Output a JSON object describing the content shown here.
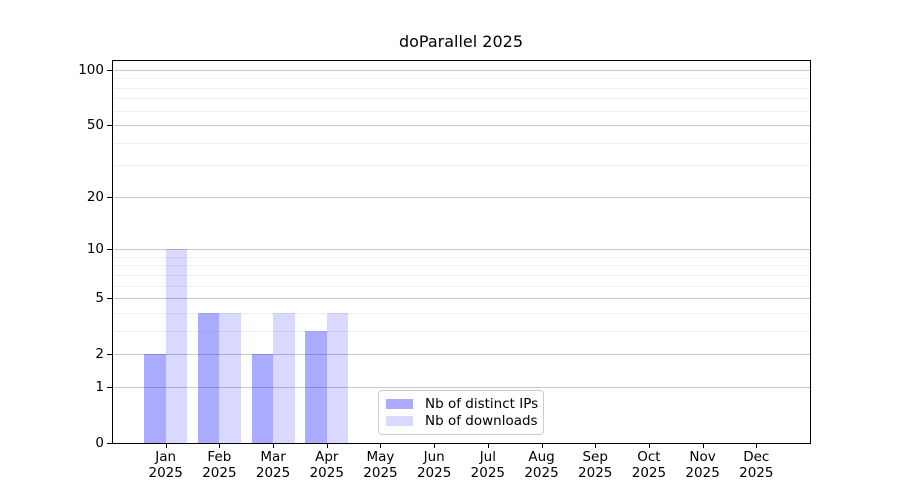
{
  "chart_data": {
    "type": "bar",
    "title": "doParallel 2025",
    "categories": [
      "Jan 2025",
      "Feb 2025",
      "Mar 2025",
      "Apr 2025",
      "May 2025",
      "Jun 2025",
      "Jul 2025",
      "Aug 2025",
      "Sep 2025",
      "Oct 2025",
      "Nov 2025",
      "Dec 2025"
    ],
    "series": [
      {
        "name": "Nb of distinct IPs",
        "base_color": "#0000ff",
        "alpha": 0.33,
        "rendered_color": "#aaaaff",
        "values": [
          2,
          4,
          2,
          3,
          0,
          0,
          0,
          0,
          0,
          0,
          0,
          0
        ]
      },
      {
        "name": "Nb of downloads",
        "base_color": "#0000ff",
        "alpha": 0.15,
        "rendered_color": "#d9d9ff",
        "values": [
          10,
          4,
          4,
          4,
          0,
          0,
          0,
          0,
          0,
          0,
          0,
          0
        ]
      }
    ],
    "yscale": "log1p",
    "ylim": [
      0,
      113
    ],
    "y_major_ticks": [
      0,
      1,
      2,
      5,
      10,
      20,
      50,
      100
    ],
    "y_minor_gridlines": [
      3,
      4,
      6,
      7,
      8,
      9,
      30,
      40,
      60,
      70,
      80,
      90
    ],
    "grid": true,
    "legend_position": "lower center-left inside plot"
  },
  "colors": {
    "background": "#ffffff",
    "spine": "#000000",
    "grid_major": "#c9c9c9",
    "grid_minor": "#efefef",
    "text": "#000000",
    "legend_border": "#cccccc"
  }
}
